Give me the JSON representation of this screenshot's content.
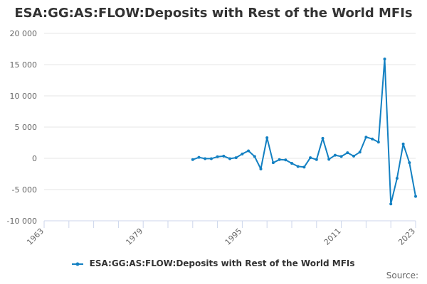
{
  "chart_data": {
    "type": "line",
    "title": "ESA:GG:AS:FLOW:Deposits with Rest of the World MFIs",
    "xlabel": "",
    "ylabel": "",
    "xlim": [
      1963,
      2023
    ],
    "ylim": [
      -10000,
      20000
    ],
    "x_ticks": [
      "1963",
      "1979",
      "1995",
      "2011",
      "2023"
    ],
    "y_ticks": [
      "20 000",
      "15 000",
      "10 000",
      "5 000",
      "0",
      "-5 000",
      "-10 000"
    ],
    "grid": true,
    "legend_position": "bottom",
    "series": [
      {
        "name": "ESA:GG:AS:FLOW:Deposits with Rest of the World MFIs",
        "color": "#1380c2",
        "x": [
          1987,
          1988,
          1989,
          1990,
          1991,
          1992,
          1993,
          1994,
          1995,
          1996,
          1997,
          1998,
          1999,
          2000,
          2001,
          2002,
          2003,
          2004,
          2005,
          2006,
          2007,
          2008,
          2009,
          2010,
          2011,
          2012,
          2013,
          2014,
          2015,
          2016,
          2017,
          2018,
          2019,
          2020,
          2021,
          2022,
          2023
        ],
        "values": [
          -200,
          150,
          -50,
          -50,
          250,
          350,
          -50,
          100,
          700,
          1200,
          300,
          -1700,
          3300,
          -700,
          -200,
          -250,
          -800,
          -1300,
          -1400,
          100,
          -200,
          3200,
          -150,
          500,
          300,
          900,
          350,
          1000,
          3400,
          3100,
          2600,
          15900,
          -7300,
          -3200,
          2300,
          -700,
          -6100
        ]
      }
    ]
  },
  "legend": {
    "label": "ESA:GG:AS:FLOW:Deposits with Rest of the World MFIs"
  },
  "source_label": "Source:"
}
